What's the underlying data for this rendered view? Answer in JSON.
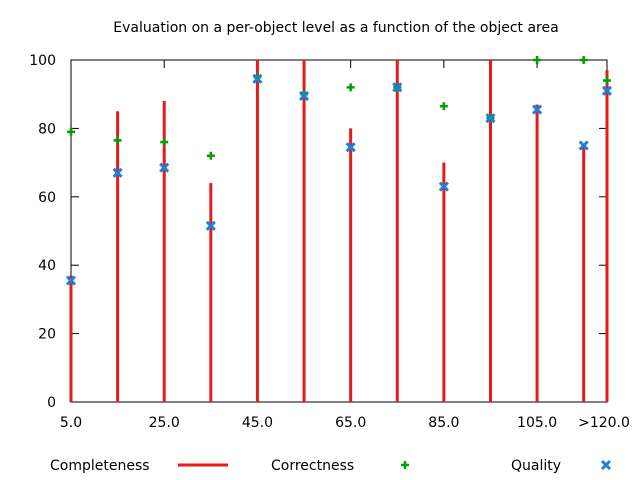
{
  "chart_data": {
    "type": "bar",
    "title": "Evaluation on a per-object level as a function of the object area",
    "xlabel": "",
    "ylabel": "",
    "ylim": [
      0,
      100
    ],
    "xlim": [
      5,
      120
    ],
    "yticks": [
      0,
      20,
      40,
      60,
      80,
      100
    ],
    "xticks": [
      {
        "value": 5,
        "label": "5.0"
      },
      {
        "value": 25,
        "label": "25.0"
      },
      {
        "value": 45,
        "label": "45.0"
      },
      {
        "value": 65,
        "label": "65.0"
      },
      {
        "value": 85,
        "label": "85.0"
      },
      {
        "value": 105,
        "label": "105.0"
      },
      {
        "value": 120,
        "label": ">120.0"
      }
    ],
    "x": [
      5,
      15,
      25,
      35,
      45,
      55,
      65,
      75,
      85,
      95,
      105,
      115,
      120
    ],
    "series": [
      {
        "name": "Completeness",
        "style": "impulse",
        "color": "#e41a1c",
        "values": [
          37,
          85,
          88,
          64,
          100,
          100,
          80,
          100,
          70,
          100,
          87,
          75,
          97
        ]
      },
      {
        "name": "Correctness",
        "style": "plus",
        "color": "#00a000",
        "values": [
          79,
          76.5,
          76,
          72,
          95,
          90,
          92,
          92,
          86.5,
          83,
          100,
          100,
          94
        ]
      },
      {
        "name": "Quality",
        "style": "cross",
        "color": "#1e7fd6",
        "values": [
          35.5,
          67,
          68.5,
          51.5,
          94.5,
          89.5,
          74.5,
          92,
          63,
          83,
          85.5,
          75,
          91
        ]
      }
    ],
    "grid": false,
    "legend_position": "bottom"
  }
}
